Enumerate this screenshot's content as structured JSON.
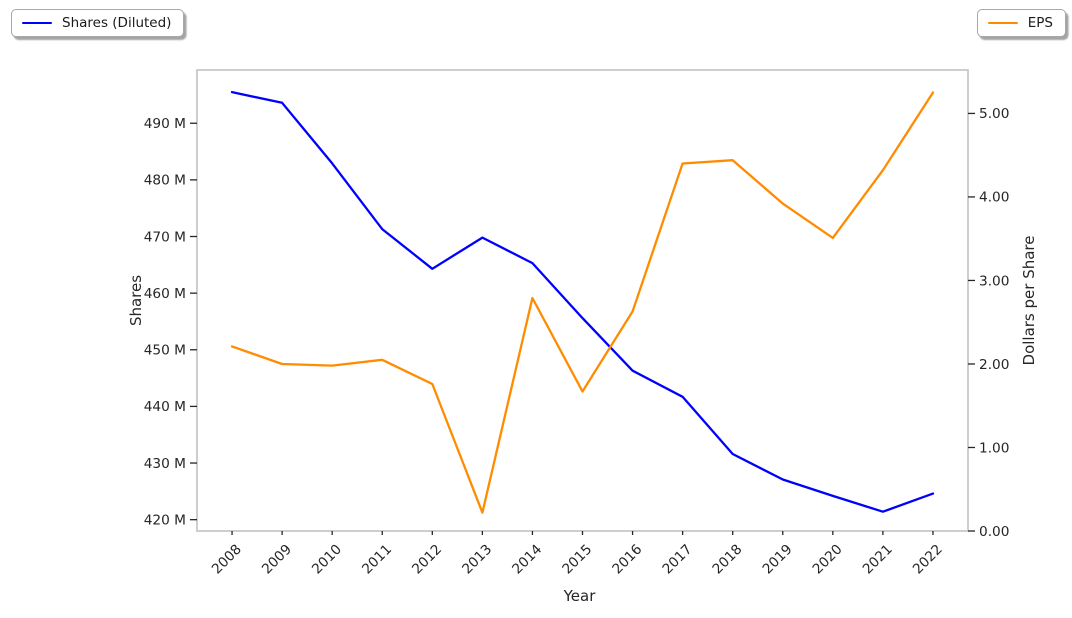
{
  "chart_data": {
    "type": "line",
    "x_categories": [
      "2008",
      "2009",
      "2010",
      "2011",
      "2012",
      "2013",
      "2014",
      "2015",
      "2016",
      "2017",
      "2018",
      "2019",
      "2020",
      "2021",
      "2022"
    ],
    "series": [
      {
        "name": "Shares (Diluted)",
        "axis": "left",
        "color": "#0000ff",
        "unit": "M shares",
        "values": [
          495.5,
          493.6,
          482.9,
          471.3,
          464.3,
          469.8,
          465.3,
          455.6,
          446.3,
          441.7,
          431.6,
          427.1,
          424.2,
          421.4,
          424.6
        ]
      },
      {
        "name": "EPS",
        "axis": "right",
        "color": "#ff8c00",
        "unit": "dollars per share",
        "values": [
          2.21,
          2.0,
          1.98,
          2.05,
          1.76,
          0.22,
          2.79,
          1.67,
          2.63,
          4.4,
          4.44,
          3.92,
          3.51,
          4.32,
          5.25
        ]
      }
    ],
    "title": "",
    "xlabel": "Year",
    "ylabel_left": "Shares",
    "ylabel_right": "Dollars per Share",
    "yticks_left": {
      "values": [
        420,
        430,
        440,
        450,
        460,
        470,
        480,
        490
      ],
      "suffix": " M"
    },
    "yticks_right": {
      "values": [
        0,
        1,
        2,
        3,
        4,
        5
      ],
      "decimals": 2
    },
    "ylim_left": [
      418,
      499.4
    ],
    "ylim_right": [
      0,
      5.52
    ],
    "xlim_index": [
      -0.7,
      14.7
    ],
    "grid": false,
    "x_tick_rotation_deg": 45,
    "legend": [
      {
        "label": "Shares (Diluted)",
        "color": "#0000ff",
        "position": "upper-left-outside"
      },
      {
        "label": "EPS",
        "color": "#ff8c00",
        "position": "upper-right-outside"
      }
    ]
  }
}
